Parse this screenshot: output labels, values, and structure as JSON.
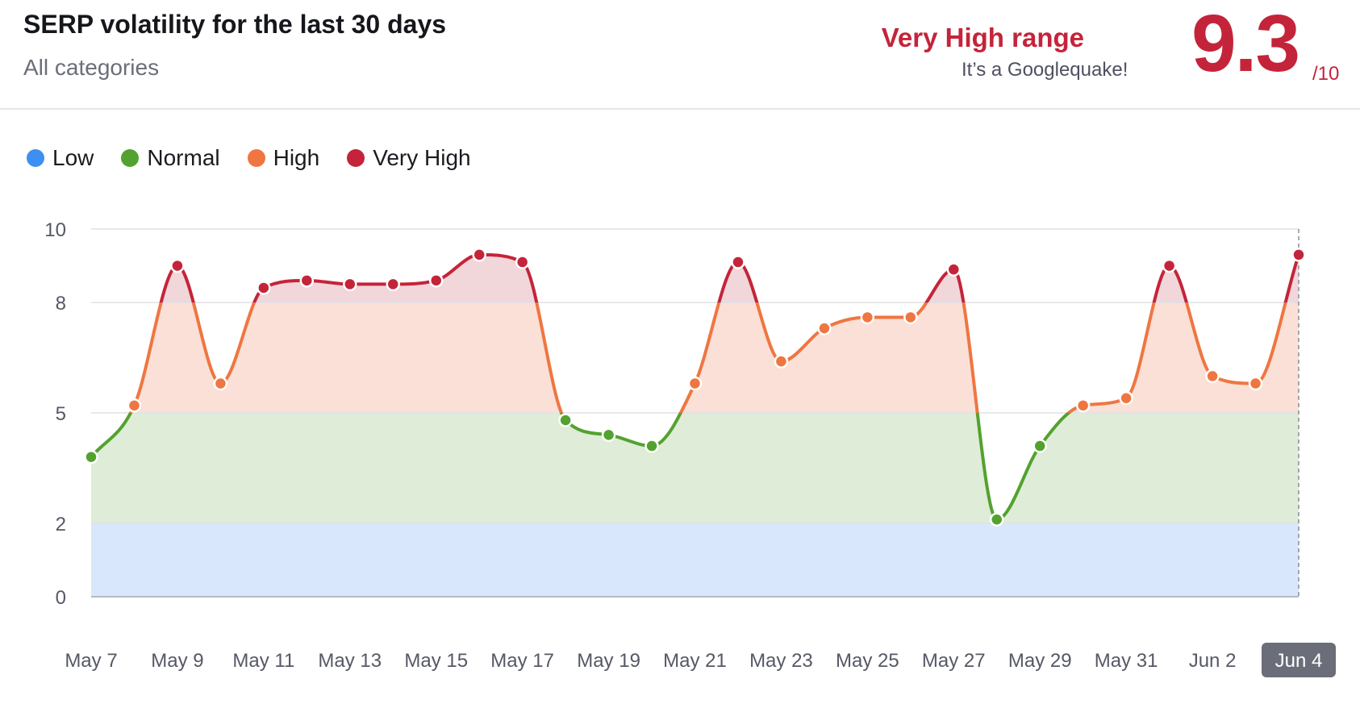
{
  "header": {
    "title": "SERP volatility for the last 30 days",
    "subtitle": "All categories",
    "range_label": "Very High range",
    "range_note": "It’s a Googlequake!",
    "score": "9.3",
    "score_max": "/10"
  },
  "colors": {
    "low": "#3d8ff2",
    "normal": "#53a22f",
    "high": "#ef7641",
    "very_high": "#c4243a",
    "low_band": "#d8e7fc",
    "normal_band": "#dfecd8",
    "high_band": "#fae0d7",
    "very_high_band": "#f1d6da",
    "selected_tick_bg": "#6b6e79"
  },
  "legend": [
    {
      "label": "Low",
      "color": "#3d8ff2"
    },
    {
      "label": "Normal",
      "color": "#53a22f"
    },
    {
      "label": "High",
      "color": "#ef7641"
    },
    {
      "label": "Very High",
      "color": "#c4243a"
    }
  ],
  "chart_data": {
    "type": "area",
    "title": "SERP volatility for the last 30 days",
    "subtitle": "All categories",
    "ylim": [
      0,
      10
    ],
    "y_ticks": [
      0,
      2,
      5,
      8,
      10
    ],
    "grid": true,
    "legend_position": "top-left",
    "bands": [
      {
        "label": "Low",
        "from": 0,
        "to": 2
      },
      {
        "label": "Normal",
        "from": 2,
        "to": 5
      },
      {
        "label": "High",
        "from": 5,
        "to": 8
      },
      {
        "label": "Very High",
        "from": 8,
        "to": 10
      }
    ],
    "x_tick_labels": [
      "May 7",
      "May 9",
      "May 11",
      "May 13",
      "May 15",
      "May 17",
      "May 19",
      "May 21",
      "May 23",
      "May 25",
      "May 27",
      "May 29",
      "May 31",
      "Jun 2",
      "Jun 4"
    ],
    "selected_x_label": "Jun 4",
    "x": [
      "May 7",
      "May 8",
      "May 9",
      "May 10",
      "May 11",
      "May 12",
      "May 13",
      "May 14",
      "May 15",
      "May 16",
      "May 17",
      "May 18",
      "May 19",
      "May 20",
      "May 21",
      "May 22",
      "May 23",
      "May 24",
      "May 25",
      "May 26",
      "May 27",
      "May 28",
      "May 29",
      "May 30",
      "May 31",
      "Jun 1",
      "Jun 2",
      "Jun 3",
      "Jun 4"
    ],
    "values": [
      3.8,
      5.2,
      9.0,
      5.8,
      8.4,
      8.6,
      8.5,
      8.5,
      8.6,
      9.3,
      9.1,
      4.8,
      4.4,
      4.1,
      5.8,
      9.1,
      6.4,
      7.3,
      7.6,
      7.6,
      8.9,
      2.1,
      4.1,
      5.2,
      5.4,
      9.0,
      6.0,
      5.8,
      9.3
    ]
  }
}
